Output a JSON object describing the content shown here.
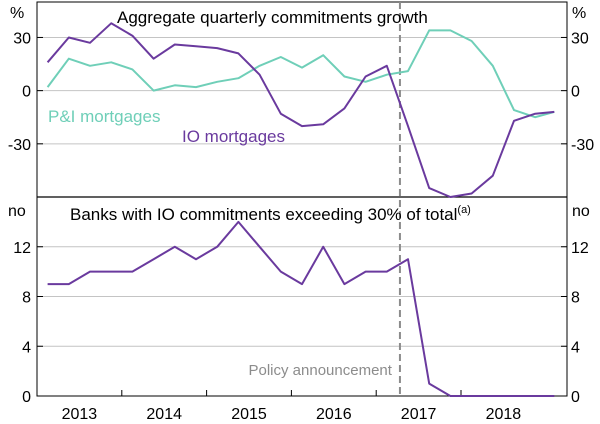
{
  "chart_data": [
    {
      "type": "line",
      "title": "Aggregate quarterly commitments growth",
      "ylabel_left": "%",
      "ylabel_right": "%",
      "ylim": [
        -60,
        50
      ],
      "yticks": [
        30,
        0,
        -30
      ],
      "ytick_labels": [
        "30",
        "0",
        "-30"
      ],
      "series": [
        {
          "name": "P&I mortgages",
          "color": "#6fcfb8",
          "x": [
            2012.625,
            2012.875,
            2013.125,
            2013.375,
            2013.625,
            2013.875,
            2014.125,
            2014.375,
            2014.625,
            2014.875,
            2015.125,
            2015.375,
            2015.625,
            2015.875,
            2016.125,
            2016.375,
            2016.625,
            2016.875,
            2017.125,
            2017.375,
            2017.625,
            2017.875,
            2018.125,
            2018.375,
            2018.6
          ],
          "values": [
            2,
            18,
            14,
            16,
            12,
            0,
            3,
            2,
            5,
            7,
            14,
            19,
            13,
            20,
            8,
            5,
            9,
            11,
            34,
            34,
            28,
            14,
            -11,
            -15,
            -12
          ]
        },
        {
          "name": "IO mortgages",
          "color": "#6a3a9e",
          "x": [
            2012.625,
            2012.875,
            2013.125,
            2013.375,
            2013.625,
            2013.875,
            2014.125,
            2014.375,
            2014.625,
            2014.875,
            2015.125,
            2015.375,
            2015.625,
            2015.875,
            2016.125,
            2016.375,
            2016.625,
            2016.875,
            2017.125,
            2017.375,
            2017.625,
            2017.875,
            2018.125,
            2018.375,
            2018.6
          ],
          "values": [
            16,
            30,
            27,
            38,
            31,
            18,
            26,
            25,
            24,
            21,
            9,
            -13,
            -20,
            -19,
            -10,
            8,
            14,
            -20,
            -55,
            -60,
            -58,
            -48,
            -17,
            -13,
            -12
          ]
        }
      ],
      "annotations": [
        {
          "text": "P&I mortgages",
          "series": 0
        },
        {
          "text": "IO mortgages",
          "series": 1
        }
      ]
    },
    {
      "type": "line",
      "title": "Banks with IO commitments exceeding 30% of total",
      "title_superscript": "(a)",
      "ylabel_left": "no",
      "ylabel_right": "no",
      "ylim": [
        0,
        16
      ],
      "yticks": [
        12,
        8,
        4,
        0
      ],
      "ytick_labels": [
        "12",
        "8",
        "4",
        "0"
      ],
      "series": [
        {
          "name": "Banks",
          "color": "#6a3a9e",
          "x": [
            2012.625,
            2012.875,
            2013.125,
            2013.375,
            2013.625,
            2013.875,
            2014.125,
            2014.375,
            2014.625,
            2014.875,
            2015.125,
            2015.375,
            2015.625,
            2015.875,
            2016.125,
            2016.375,
            2016.625,
            2016.875,
            2017.125,
            2017.375,
            2017.625,
            2017.875,
            2018.125,
            2018.375,
            2018.6
          ],
          "values": [
            9,
            9,
            10,
            10,
            10,
            11,
            12,
            11,
            12,
            14,
            12,
            10,
            9,
            12,
            9,
            10,
            10,
            11,
            1,
            0,
            0,
            0,
            0,
            0,
            0
          ]
        }
      ]
    }
  ],
  "xaxis": {
    "range": [
      2012.5,
      2018.75
    ],
    "tick_labels": [
      "2013",
      "2014",
      "2015",
      "2016",
      "2017",
      "2018"
    ],
    "tick_centers": [
      2013,
      2014,
      2015,
      2016,
      2017,
      2018
    ]
  },
  "policy_line": {
    "x": 2016.78,
    "label": "Policy announcement",
    "color": "#8c8c8c"
  }
}
